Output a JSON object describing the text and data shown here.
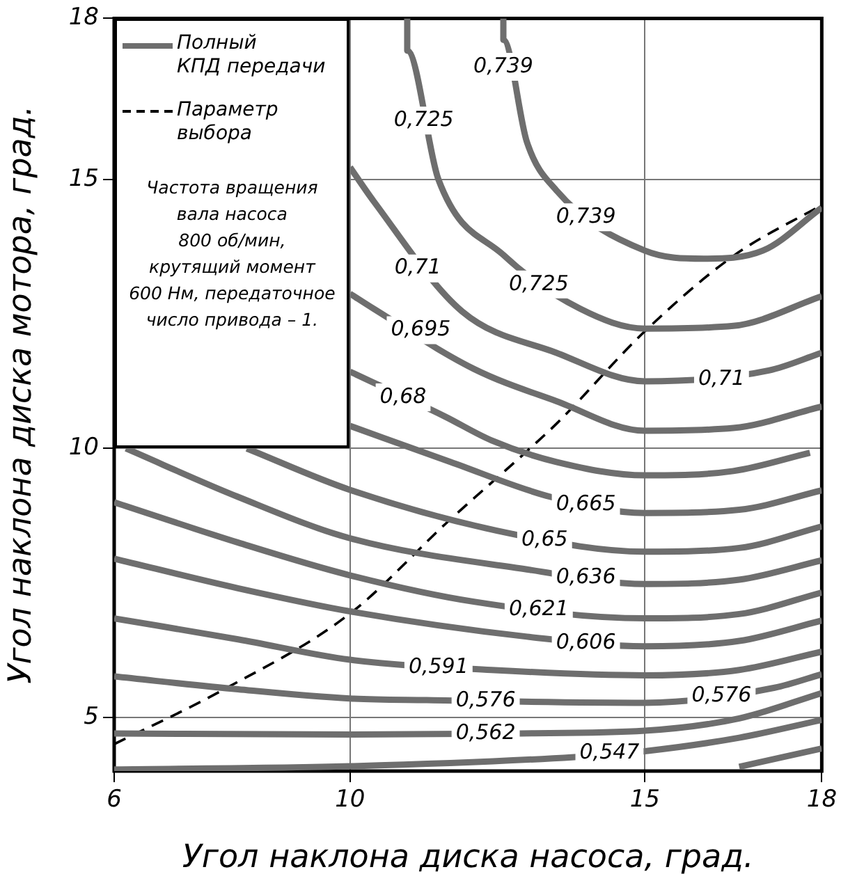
{
  "chart_data": {
    "type": "line",
    "xlabel": "Угол наклона диска насоса, град.",
    "ylabel": "Угол наклона диска мотора, град.",
    "xlim": [
      6,
      18
    ],
    "xticks": [
      6,
      10,
      15,
      18
    ],
    "ylim": [
      4,
      18
    ],
    "yticks": [
      5,
      10,
      15,
      18
    ],
    "grid": true,
    "legend": "top left",
    "marker": "none",
    "series": [
      {
        "name": "Полный\nКПД передачи",
        "color": "#6e6e6e",
        "x": [
          6,
          10,
          13.8,
          15,
          16.6,
          18
        ],
        "values": [
          4.03,
          4.09,
          4.26,
          4.37,
          4.62,
          4.95
        ]
      },
      {
        "color": "#6e6e6e",
        "x": [
          16.6,
          18
        ],
        "values": [
          4.08,
          4.42
        ]
      },
      {
        "color": "#6e6e6e",
        "x": [
          6,
          10,
          12.9,
          15,
          16.6,
          18
        ],
        "values": [
          4.7,
          4.68,
          4.7,
          4.75,
          4.98,
          5.45
        ]
      },
      {
        "color": "#6e6e6e",
        "x": [
          6,
          8.1,
          10,
          11.3,
          15,
          17.2,
          18
        ],
        "values": [
          5.76,
          5.52,
          5.35,
          5.32,
          5.27,
          5.55,
          5.8
        ]
      },
      {
        "color": "#6e6e6e",
        "x": [
          6,
          8.1,
          10,
          12.4,
          15,
          16.6,
          18
        ],
        "values": [
          6.84,
          6.45,
          6.07,
          5.88,
          5.78,
          5.88,
          6.22
        ]
      },
      {
        "color": "#6e6e6e",
        "x": [
          6,
          8.1,
          10,
          13,
          15,
          16.6,
          18
        ],
        "values": [
          7.95,
          7.4,
          6.97,
          6.5,
          6.32,
          6.42,
          6.8
        ]
      },
      {
        "color": "#6e6e6e",
        "x": [
          6,
          8.1,
          10,
          12.1,
          15,
          16.6,
          18
        ],
        "values": [
          9,
          8.25,
          7.64,
          7.15,
          6.84,
          6.92,
          7.32
        ]
      },
      {
        "color": "#6e6e6e",
        "x": [
          6.2,
          8.1,
          10,
          13,
          15,
          16.6,
          18
        ],
        "values": [
          10,
          9.1,
          8.33,
          7.75,
          7.48,
          7.56,
          7.92
        ]
      },
      {
        "color": "#6e6e6e",
        "x": [
          8.25,
          10,
          12.8,
          15,
          16.6,
          18
        ],
        "values": [
          10,
          9.23,
          8.4,
          8.08,
          8.15,
          8.55
        ]
      },
      {
        "color": "#6e6e6e",
        "x": [
          10,
          11.7,
          13.4,
          15,
          16.6,
          18
        ],
        "values": [
          10.42,
          9.75,
          9.1,
          8.8,
          8.86,
          9.22
        ]
      },
      {
        "color": "#6e6e6e",
        "x": [
          10,
          11.6,
          12.4,
          13.5,
          15,
          16.5,
          17.8
        ],
        "values": [
          11.43,
          10.6,
          10.15,
          9.75,
          9.5,
          9.58,
          9.92
        ]
      },
      {
        "color": "#6e6e6e",
        "x": [
          10,
          10.4,
          12.1,
          13.5,
          15,
          16.5,
          18
        ],
        "values": [
          12.88,
          12.6,
          11.48,
          10.88,
          10.33,
          10.38,
          10.78
        ]
      },
      {
        "color": "#6e6e6e",
        "x": [
          10,
          10.4,
          11.9,
          13.5,
          15,
          17.1,
          18
        ],
        "values": [
          15.23,
          14.6,
          12.55,
          11.78,
          11.25,
          11.45,
          11.78
        ]
      },
      {
        "color": "#6e6e6e",
        "x": [
          10.97,
          10.97,
          11.5,
          12.6,
          13.9,
          15,
          16.5,
          18
        ],
        "values": [
          18,
          17.4,
          15,
          13.6,
          12.6,
          12.23,
          12.28,
          12.83
        ]
      },
      {
        "color": "#6e6e6e",
        "x": [
          12.6,
          12.6,
          13,
          13.5,
          15,
          16,
          17,
          18
        ],
        "values": [
          18,
          17.6,
          15.7,
          14.8,
          13.68,
          13.53,
          13.68,
          14.48
        ]
      },
      {
        "name": "Параметр\nвыбора",
        "color": "#000000",
        "line_style": "dashed",
        "x": [
          6,
          7.83,
          10,
          11.68,
          13,
          13.52,
          15,
          16.5,
          18
        ],
        "values": [
          4.5,
          5.5,
          6.93,
          8.66,
          9.95,
          10.48,
          12.18,
          13.58,
          14.53
        ]
      }
    ],
    "annotations": [
      "Частота вращения\nвала насоса\n800 об/мин,\nкрутящий момент\n600 Нм, передаточное\nчисло привода – 1.",
      {
        "text": "0,739",
        "x": 12.6,
        "y": 17.1
      },
      {
        "text": "0,725",
        "x": 11.25,
        "y": 16.1
      },
      {
        "text": "0,739",
        "x": 14,
        "y": 14.3
      },
      {
        "text": "0,71",
        "x": 11.15,
        "y": 13.35
      },
      {
        "text": "0,725",
        "x": 13.2,
        "y": 13.05
      },
      {
        "text": "0,695",
        "x": 11.2,
        "y": 12.2
      },
      {
        "text": "0,68",
        "x": 10.9,
        "y": 10.95
      },
      {
        "text": "0,71",
        "x": 16.3,
        "y": 11.28
      },
      {
        "text": "0,665",
        "x": 14,
        "y": 8.95
      },
      {
        "text": "0,65",
        "x": 13.3,
        "y": 8.3
      },
      {
        "text": "0,636",
        "x": 14,
        "y": 7.6
      },
      {
        "text": "0,621",
        "x": 13.2,
        "y": 7
      },
      {
        "text": "0,606",
        "x": 14,
        "y": 6.38
      },
      {
        "text": "0,591",
        "x": 11.5,
        "y": 5.93
      },
      {
        "text": "0,576",
        "x": 12.3,
        "y": 5.3
      },
      {
        "text": "0,576",
        "x": 16.3,
        "y": 5.4
      },
      {
        "text": "0,562",
        "x": 12.3,
        "y": 4.7
      },
      {
        "text": "0,547",
        "x": 14.4,
        "y": 4.33
      }
    ]
  }
}
